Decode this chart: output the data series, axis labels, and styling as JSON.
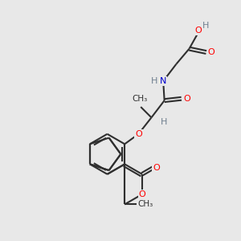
{
  "background_color": "#e8e8e8",
  "atom_colors": {
    "O": "#ff0000",
    "N": "#0000cd",
    "H": "#708090"
  },
  "bond_color": "#2f2f2f",
  "figsize": [
    3.0,
    3.0
  ],
  "dpi": 100,
  "lw": 1.5,
  "fs": 8.0
}
